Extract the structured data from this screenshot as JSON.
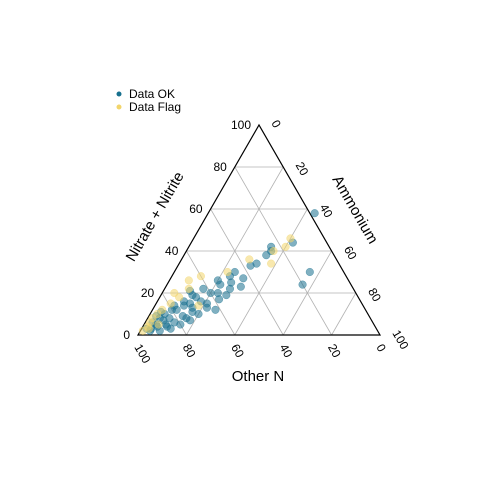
{
  "chart_data": {
    "type": "ternary-scatter",
    "axes": {
      "left": {
        "label": "Nitrate + Nitrite",
        "ticks": [
          "0",
          "20",
          "40",
          "60",
          "80",
          "100"
        ]
      },
      "right": {
        "label": "Ammonium",
        "ticks": [
          "0",
          "20",
          "40",
          "60",
          "80",
          "100"
        ]
      },
      "bottom": {
        "label": "Other N",
        "ticks": [
          "100",
          "80",
          "60",
          "40",
          "20",
          "0"
        ]
      }
    },
    "grid": true,
    "grid_step": 20,
    "legend": {
      "placement": "top-left",
      "items": [
        {
          "label": "Data OK",
          "color": "#17708e"
        },
        {
          "label": "Data Flag",
          "color": "#f2d56b"
        }
      ]
    },
    "series": [
      {
        "name": "Data OK",
        "color": "#17708e",
        "points": [
          [
            3,
            4
          ],
          [
            4,
            6
          ],
          [
            5,
            5
          ],
          [
            6,
            3
          ],
          [
            2,
            8
          ],
          [
            7,
            7
          ],
          [
            8,
            5
          ],
          [
            4,
            10
          ],
          [
            3,
            12
          ],
          [
            6,
            12
          ],
          [
            8,
            9
          ],
          [
            10,
            6
          ],
          [
            5,
            15
          ],
          [
            9,
            14
          ],
          [
            12,
            10
          ],
          [
            12,
            8
          ],
          [
            14,
            12
          ],
          [
            7,
            18
          ],
          [
            11,
            17
          ],
          [
            13,
            16
          ],
          [
            15,
            14
          ],
          [
            10,
            20
          ],
          [
            13,
            22
          ],
          [
            16,
            18
          ],
          [
            18,
            15
          ],
          [
            20,
            20
          ],
          [
            22,
            16
          ],
          [
            17,
            25
          ],
          [
            20,
            23
          ],
          [
            24,
            22
          ],
          [
            26,
            20
          ],
          [
            12,
            26
          ],
          [
            22,
            27
          ],
          [
            25,
            26
          ],
          [
            28,
            24
          ],
          [
            30,
            25
          ],
          [
            27,
            30
          ],
          [
            33,
            30
          ],
          [
            34,
            32
          ],
          [
            38,
            34
          ],
          [
            40,
            35
          ],
          [
            42,
            34
          ],
          [
            44,
            42
          ],
          [
            58,
            44
          ],
          [
            24,
            56
          ],
          [
            30,
            56
          ],
          [
            14,
            8
          ],
          [
            3,
            2
          ],
          [
            2,
            4
          ],
          [
            9,
            3
          ],
          [
            11,
            4
          ],
          [
            5,
            9
          ],
          [
            16,
            11
          ],
          [
            19,
            13
          ],
          [
            21,
            11
          ],
          [
            8,
            16
          ],
          [
            15,
            21
          ],
          [
            19,
            27
          ],
          [
            23,
            31
          ]
        ]
      },
      {
        "name": "Data Flag",
        "color": "#f2d56b",
        "points": [
          [
            2,
            1
          ],
          [
            4,
            2
          ],
          [
            6,
            2
          ],
          [
            3,
            3
          ],
          [
            8,
            2
          ],
          [
            10,
            3
          ],
          [
            5,
            6
          ],
          [
            12,
            4
          ],
          [
            15,
            6
          ],
          [
            18,
            8
          ],
          [
            20,
            5
          ],
          [
            22,
            10
          ],
          [
            14,
            18
          ],
          [
            26,
            8
          ],
          [
            30,
            22
          ],
          [
            36,
            28
          ],
          [
            34,
            38
          ],
          [
            40,
            36
          ],
          [
            42,
            40
          ],
          [
            46,
            40
          ],
          [
            28,
            12
          ]
        ]
      }
    ]
  }
}
